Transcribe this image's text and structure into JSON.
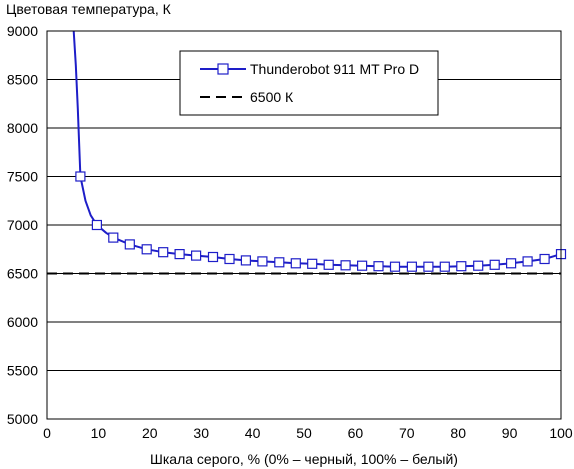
{
  "chart_data": {
    "type": "line",
    "ylabel": "Цветовая температура, К",
    "xlabel": "Шкала серого, % (0% – черный, 100% – белый)",
    "xlim": [
      0,
      100
    ],
    "ylim": [
      5000,
      9000
    ],
    "x_ticks": [
      0,
      10,
      20,
      30,
      40,
      50,
      60,
      70,
      80,
      90,
      100
    ],
    "y_ticks": [
      5000,
      5500,
      6000,
      6500,
      7000,
      7500,
      8000,
      8500,
      9000
    ],
    "grid": "horizontal",
    "legend_position": "top-center",
    "series": [
      {
        "name": "Thunderobot 911 MT Pro D",
        "color": "#1e1ec8",
        "marker": "square",
        "curve_points": [
          [
            5.2,
            9000
          ],
          [
            5.6,
            8650
          ],
          [
            6.0,
            8200
          ],
          [
            6.5,
            7500
          ],
          [
            7.5,
            7250
          ],
          [
            8.5,
            7100
          ],
          [
            9.7,
            7000
          ],
          [
            11.5,
            6920
          ],
          [
            12.9,
            6870
          ],
          [
            16.1,
            6800
          ],
          [
            19.4,
            6750
          ],
          [
            22.6,
            6720
          ],
          [
            25.8,
            6700
          ],
          [
            29.0,
            6685
          ],
          [
            32.3,
            6670
          ],
          [
            35.5,
            6650
          ],
          [
            38.7,
            6635
          ],
          [
            41.9,
            6625
          ],
          [
            45.2,
            6615
          ],
          [
            48.4,
            6605
          ],
          [
            51.6,
            6600
          ],
          [
            54.8,
            6590
          ],
          [
            58.1,
            6585
          ],
          [
            61.3,
            6580
          ],
          [
            64.5,
            6575
          ],
          [
            67.7,
            6570
          ],
          [
            71.0,
            6570
          ],
          [
            74.2,
            6570
          ],
          [
            77.4,
            6570
          ],
          [
            80.6,
            6575
          ],
          [
            83.9,
            6580
          ],
          [
            87.1,
            6590
          ],
          [
            90.3,
            6605
          ],
          [
            93.5,
            6625
          ],
          [
            96.8,
            6650
          ],
          [
            100.0,
            6700
          ]
        ],
        "marker_points": [
          [
            6.5,
            7500
          ],
          [
            9.7,
            7000
          ],
          [
            12.9,
            6870
          ],
          [
            16.1,
            6800
          ],
          [
            19.4,
            6750
          ],
          [
            22.6,
            6720
          ],
          [
            25.8,
            6700
          ],
          [
            29.0,
            6685
          ],
          [
            32.3,
            6670
          ],
          [
            35.5,
            6650
          ],
          [
            38.7,
            6635
          ],
          [
            41.9,
            6625
          ],
          [
            45.2,
            6615
          ],
          [
            48.4,
            6605
          ],
          [
            51.6,
            6600
          ],
          [
            54.8,
            6590
          ],
          [
            58.1,
            6585
          ],
          [
            61.3,
            6580
          ],
          [
            64.5,
            6575
          ],
          [
            67.7,
            6570
          ],
          [
            71.0,
            6570
          ],
          [
            74.2,
            6570
          ],
          [
            77.4,
            6570
          ],
          [
            80.6,
            6575
          ],
          [
            83.9,
            6580
          ],
          [
            87.1,
            6590
          ],
          [
            90.3,
            6605
          ],
          [
            93.5,
            6625
          ],
          [
            96.8,
            6650
          ],
          [
            100.0,
            6700
          ]
        ]
      },
      {
        "name": "6500 К",
        "color": "#000000",
        "style": "dashed",
        "value": 6500
      }
    ]
  }
}
